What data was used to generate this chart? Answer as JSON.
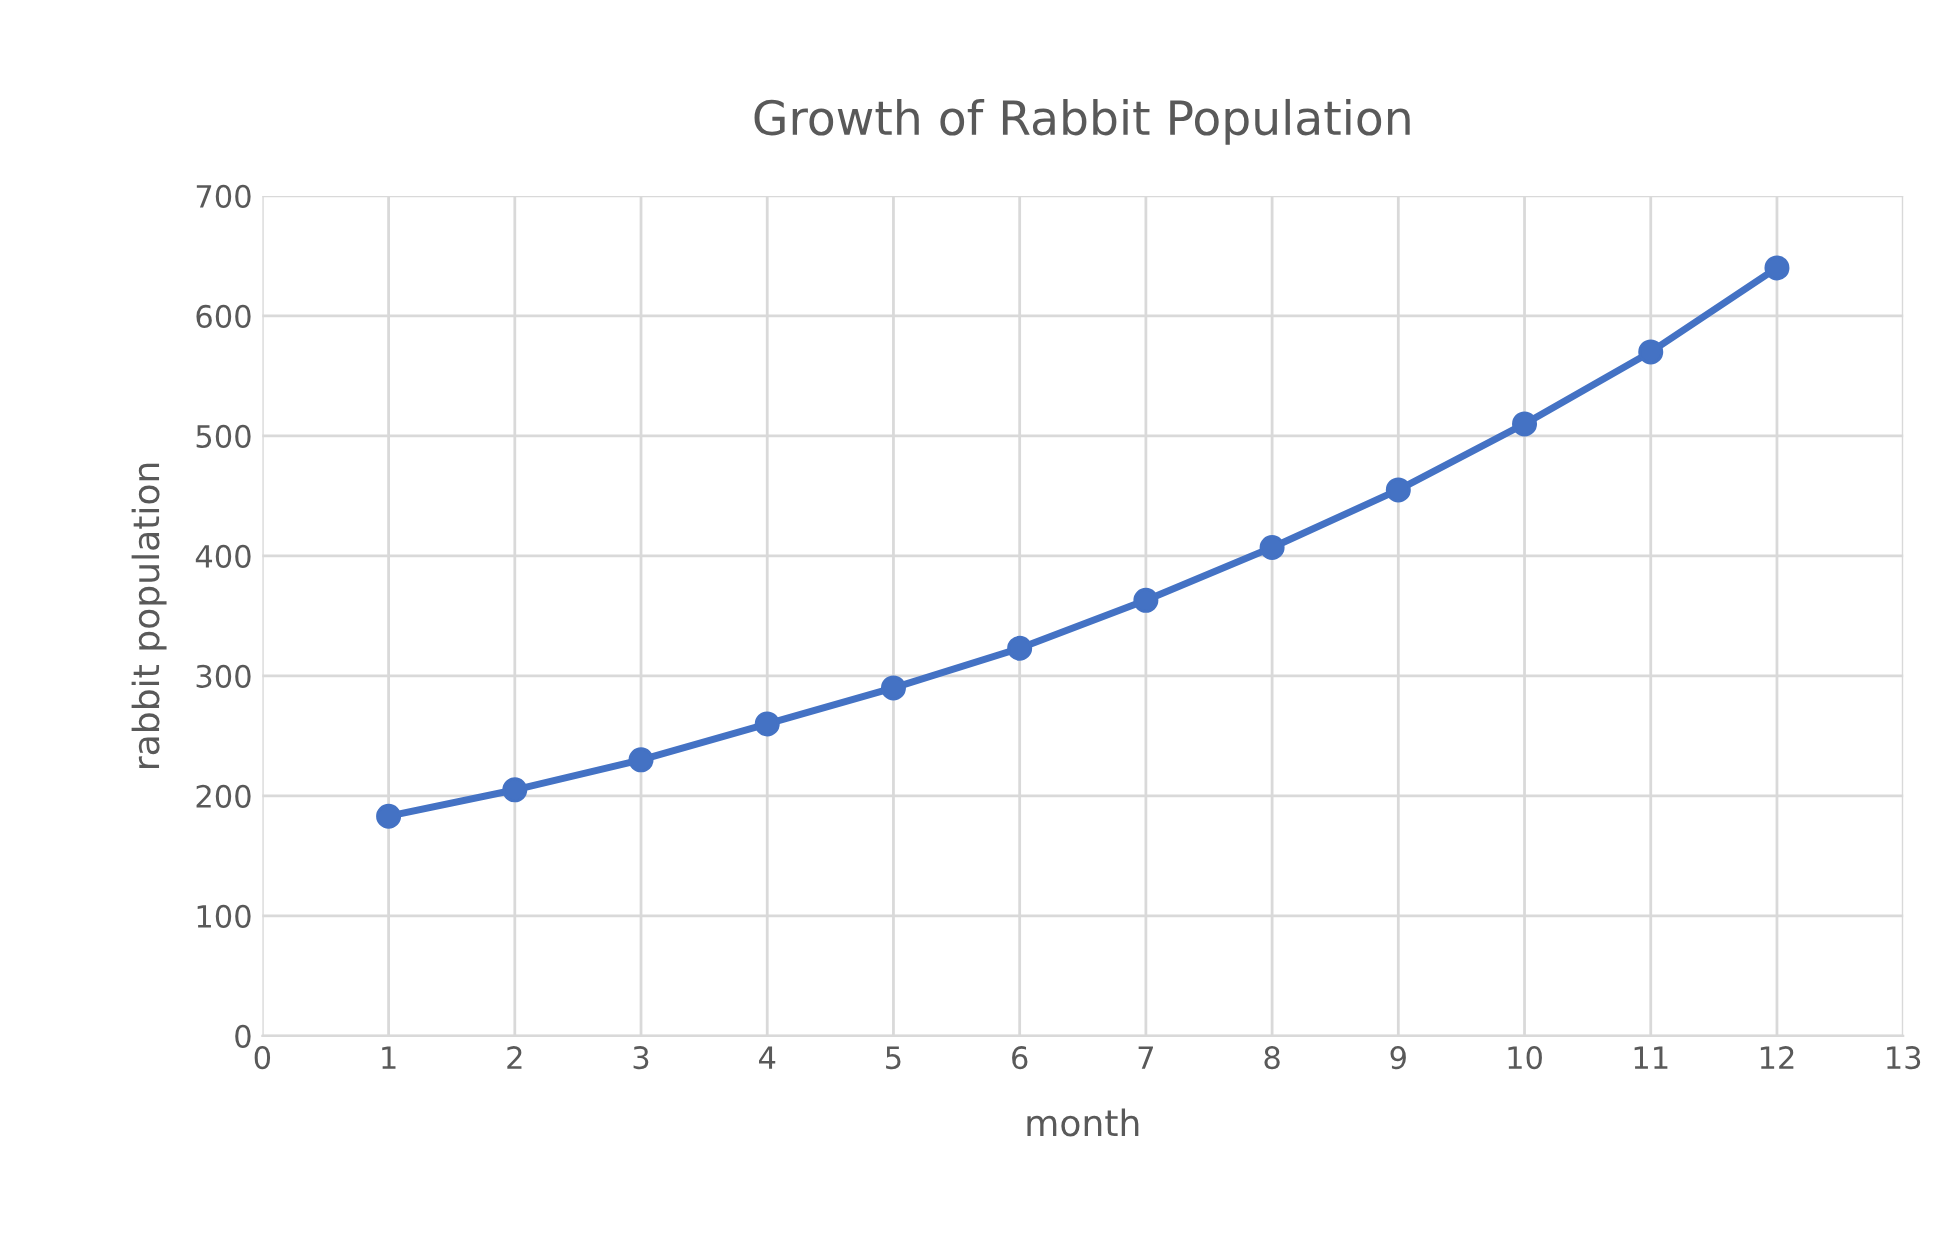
{
  "chart_data": {
    "type": "line",
    "title": "Growth of Rabbit Population",
    "xlabel": "month",
    "ylabel": "rabbit population",
    "x": [
      1,
      2,
      3,
      4,
      5,
      6,
      7,
      8,
      9,
      10,
      11,
      12
    ],
    "series": [
      {
        "color": "#4472c4",
        "values": [
          183,
          205,
          230,
          260,
          290,
          323,
          363,
          407,
          455,
          510,
          570,
          640
        ]
      }
    ],
    "xlim": [
      0,
      13
    ],
    "xticks": [
      0,
      1,
      2,
      3,
      4,
      5,
      6,
      7,
      8,
      9,
      10,
      11,
      12,
      13
    ],
    "ylim": [
      0,
      700
    ],
    "yticks": [
      0,
      100,
      200,
      300,
      400,
      500,
      600,
      700
    ],
    "grid": true,
    "marker": "circle",
    "line_style": "solid"
  }
}
